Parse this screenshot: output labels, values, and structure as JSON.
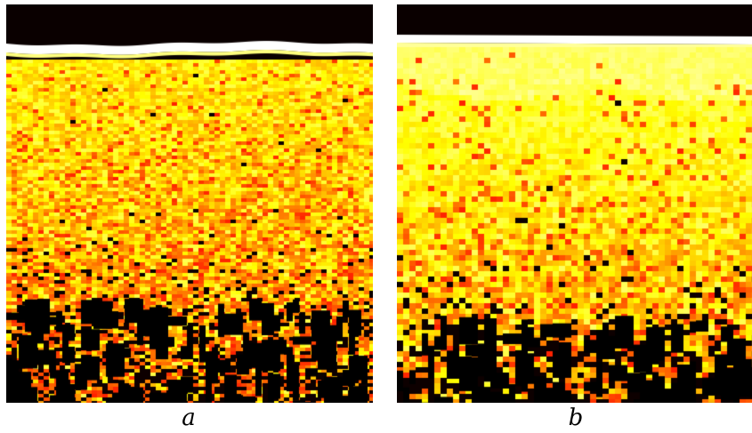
{
  "panels": [
    {
      "caption": "a",
      "description_colors": {
        "top_band": "#0a0000",
        "surface_line": "#ffffff",
        "upper_fill": "#f5a623",
        "lower_fill": "#e8801a",
        "hot_spot": "#ffff66",
        "cold_spot": "#000000"
      }
    },
    {
      "caption": "b",
      "description_colors": {
        "top_band": "#0a0000",
        "surface_line": "#ffffff",
        "upper_fill": "#f2e832",
        "lower_fill": "#f29a22",
        "hot_spot": "#ffff66",
        "cold_spot": "#000000"
      }
    }
  ]
}
